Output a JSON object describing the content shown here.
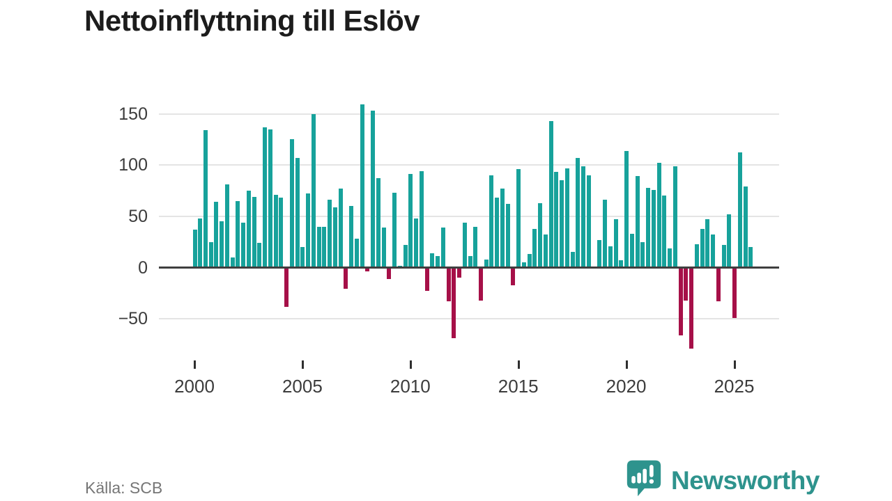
{
  "page": {
    "title": "Nettoinflyttning till Eslöv",
    "source": "Källa: SCB"
  },
  "branding": {
    "name": "Newsworthy",
    "logo_icon": "bar-chart-exclamation-speech-bubble-icon",
    "color": "#2e938d"
  },
  "colors": {
    "positive_bar": "#17a29b",
    "negative_bar": "#a61048",
    "gridline": "#e4e4e4",
    "zero_axis": "#3f3f3f",
    "title_text": "#1c1c1c",
    "axis_text": "#3c3c3c",
    "source_text": "#767676"
  },
  "chart_data": {
    "type": "bar",
    "title": "Nettoinflyttning till Eslöv",
    "xlabel": "",
    "ylabel": "",
    "frequency": "quarterly",
    "first_period": "2000 Q1",
    "last_period": "2025 Q4",
    "grid": "horizontal",
    "legend": "none",
    "ylim": [
      -85,
      165
    ],
    "positive_color": "#17a29b",
    "negative_color": "#a61048",
    "yticks": [
      {
        "value": 150,
        "label": "150"
      },
      {
        "value": 100,
        "label": "100"
      },
      {
        "value": 50,
        "label": "50"
      },
      {
        "value": 0,
        "label": "0"
      },
      {
        "value": -50,
        "label": "−50"
      }
    ],
    "xticks": [
      {
        "year": 2000,
        "label": "2000"
      },
      {
        "year": 2005,
        "label": "2005"
      },
      {
        "year": 2010,
        "label": "2010"
      },
      {
        "year": 2015,
        "label": "2015"
      },
      {
        "year": 2020,
        "label": "2020"
      },
      {
        "year": 2025,
        "label": "2025"
      }
    ],
    "values": [
      37,
      48,
      134,
      25,
      64,
      45,
      81,
      10,
      65,
      44,
      75,
      69,
      24,
      137,
      135,
      71,
      68,
      -37,
      125,
      107,
      20,
      72,
      150,
      40,
      40,
      66,
      59,
      77,
      -20,
      60,
      28,
      159,
      -3,
      153,
      87,
      39,
      -10,
      73,
      2,
      22,
      91,
      48,
      94,
      -22,
      14,
      11,
      39,
      -32,
      -68,
      -9,
      44,
      11,
      40,
      -31,
      8,
      90,
      68,
      77,
      62,
      -16,
      96,
      5,
      13,
      38,
      63,
      32,
      143,
      93,
      85,
      97,
      15,
      107,
      99,
      90,
      0,
      27,
      66,
      21,
      47,
      7,
      114,
      33,
      89,
      25,
      78,
      76,
      102,
      70,
      19,
      99,
      -65,
      -31,
      -78,
      23,
      38,
      47,
      32,
      -32,
      22,
      52,
      -48,
      112,
      79,
      20
    ]
  }
}
